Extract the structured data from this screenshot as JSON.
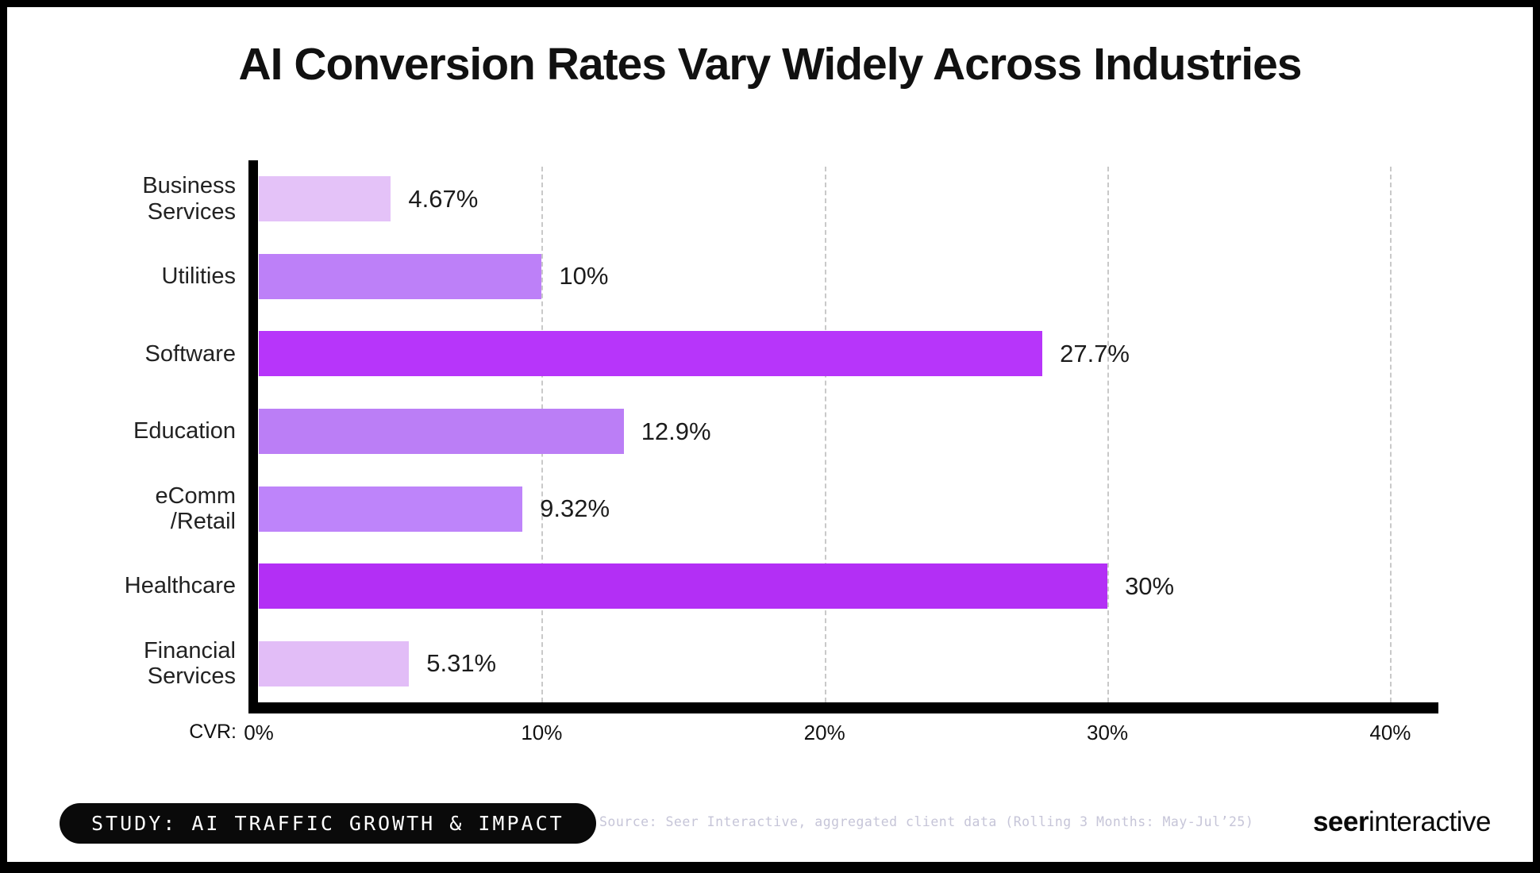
{
  "title": "AI Conversion Rates Vary Widely Across Industries",
  "chart_data": {
    "type": "bar",
    "orientation": "horizontal",
    "title": "AI Conversion Rates Vary Widely Across Industries",
    "categories": [
      "Business Services",
      "Utilities",
      "Software",
      "Education",
      "eComm /Retail",
      "Healthcare",
      "Financial Services"
    ],
    "category_lines": [
      [
        "Business",
        "Services"
      ],
      [
        "Utilities"
      ],
      [
        "Software"
      ],
      [
        "Education"
      ],
      [
        "eComm",
        "/Retail"
      ],
      [
        "Healthcare"
      ],
      [
        "Financial",
        "Services"
      ]
    ],
    "values": [
      4.67,
      10,
      27.7,
      12.9,
      9.32,
      30,
      5.31
    ],
    "value_labels": [
      "4.67%",
      "10%",
      "27.7%",
      "12.9%",
      "9.32%",
      "30%",
      "5.31%"
    ],
    "bar_colors": [
      "#E4C2F8",
      "#BD80F8",
      "#B735FA",
      "#BB7EF6",
      "#BE84FA",
      "#B32FF5",
      "#E2BDF7"
    ],
    "xlabel": "CVR:",
    "x_ticks": [
      "0%",
      "10%",
      "20%",
      "30%",
      "40%"
    ],
    "x_tick_values": [
      0,
      10,
      20,
      30,
      40
    ],
    "xlim": [
      0,
      41.7
    ],
    "grid": "vertical-dashed",
    "legend": "none"
  },
  "footer": {
    "badge": "STUDY: AI TRAFFIC GROWTH & IMPACT",
    "source": "Source: Seer Interactive, aggregated client data (Rolling 3 Months: May-Jul’25)",
    "logo_bold": "seer",
    "logo_regular": "interactive"
  },
  "colors": {
    "axis": "#000000",
    "gridline": "#c9c9c9",
    "badge_bg": "#0a0a0a",
    "badge_text": "#ffffff",
    "source_text": "#c6c5d8",
    "title_text": "#111111",
    "label_text": "#222222",
    "frame_border": "#000000",
    "background": "#ffffff"
  }
}
